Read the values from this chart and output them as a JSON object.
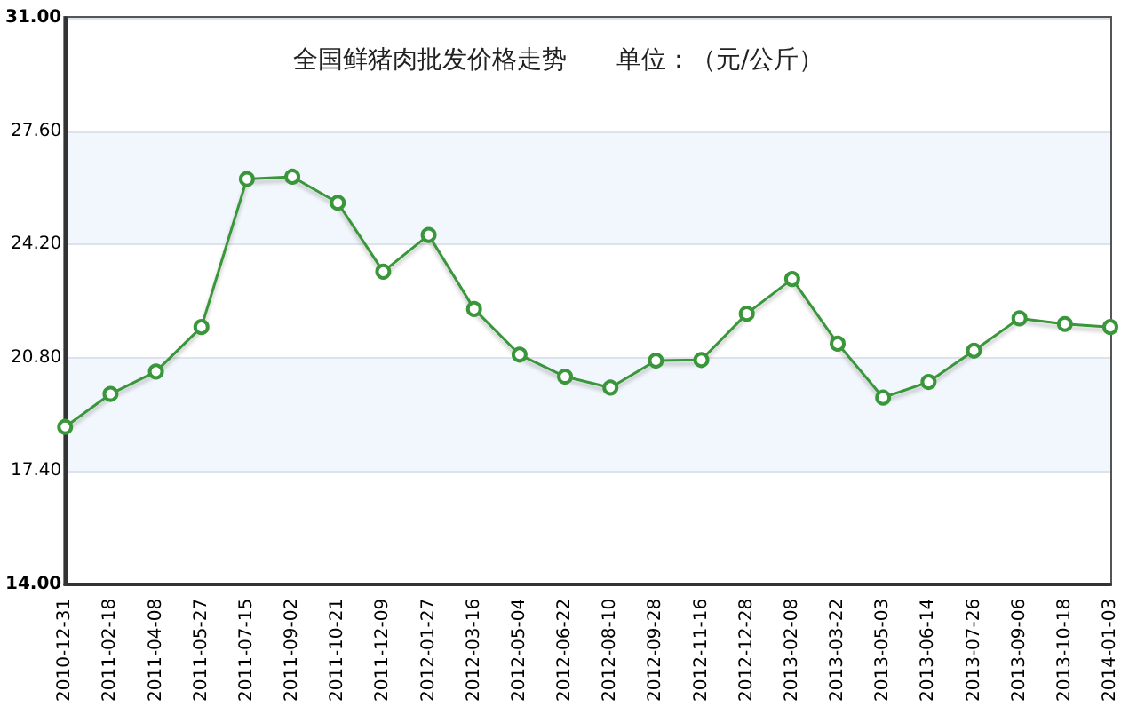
{
  "chart_data": {
    "type": "line",
    "title": "全国鲜猪肉批发价格走势　　单位：（元/公斤）",
    "categories": [
      "2010-12-31",
      "2011-02-18",
      "2011-04-08",
      "2011-05-27",
      "2011-07-15",
      "2011-09-02",
      "2011-10-21",
      "2011-12-09",
      "2012-01-27",
      "2012-03-16",
      "2012-05-04",
      "2012-06-22",
      "2012-08-10",
      "2012-09-28",
      "2012-11-16",
      "2012-12-28",
      "2013-02-08",
      "2013-03-22",
      "2013-05-03",
      "2013-06-14",
      "2013-07-26",
      "2013-09-06",
      "2013-10-18",
      "2014-01-03"
    ],
    "series": [
      {
        "color": "#3a963a",
        "values": [
          18.72,
          19.71,
          20.38,
          21.72,
          26.16,
          26.23,
          25.45,
          23.38,
          24.48,
          22.26,
          20.89,
          20.23,
          19.9,
          20.71,
          20.73,
          22.12,
          23.16,
          21.22,
          19.6,
          20.07,
          21.01,
          21.98,
          21.81,
          21.72
        ]
      }
    ],
    "ylim": [
      14,
      31
    ],
    "yticks": [
      {
        "value": 14,
        "label": "14.00"
      },
      {
        "value": 17.4,
        "label": "17.40"
      },
      {
        "value": 20.8,
        "label": "20.80"
      },
      {
        "value": 24.2,
        "label": "24.20"
      },
      {
        "value": 27.6,
        "label": "27.60"
      },
      {
        "value": 31,
        "label": "31.00"
      }
    ],
    "grid": "y",
    "marker": "circle",
    "line_style": "solid"
  }
}
